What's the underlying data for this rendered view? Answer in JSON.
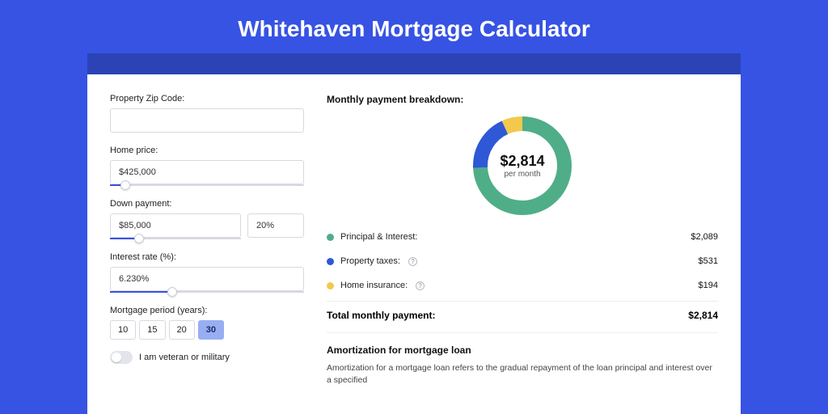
{
  "page": {
    "title": "Whitehaven Mortgage Calculator",
    "background_color": "#3753e4",
    "band_color": "#2b43b5",
    "card_color": "#ffffff"
  },
  "form": {
    "zip": {
      "label": "Property Zip Code:",
      "value": ""
    },
    "home_price": {
      "label": "Home price:",
      "value": "$425,000",
      "slider_pct": 0.08
    },
    "down_payment": {
      "label": "Down payment:",
      "amount": "$85,000",
      "pct": "20%",
      "slider_pct": 0.22
    },
    "interest_rate": {
      "label": "Interest rate (%):",
      "value": "6.230%",
      "slider_pct": 0.32
    },
    "period": {
      "label": "Mortgage period (years):",
      "options": [
        "10",
        "15",
        "20",
        "30"
      ],
      "selected_index": 3
    },
    "veteran": {
      "label": "I am veteran or military",
      "on": false
    }
  },
  "breakdown": {
    "title": "Monthly payment breakdown:",
    "center_amount": "$2,814",
    "center_sub": "per month",
    "donut": {
      "size": 122,
      "stroke_width": 18,
      "segments": [
        {
          "key": "principal_interest",
          "color": "#4fae88",
          "fraction": 0.742
        },
        {
          "key": "property_taxes",
          "color": "#2e58d6",
          "fraction": 0.189
        },
        {
          "key": "home_insurance",
          "color": "#f2c94c",
          "fraction": 0.069
        }
      ]
    },
    "rows": [
      {
        "label": "Principal & Interest:",
        "color": "#4fae88",
        "value": "$2,089",
        "info": false
      },
      {
        "label": "Property taxes:",
        "color": "#2e58d6",
        "value": "$531",
        "info": true
      },
      {
        "label": "Home insurance:",
        "color": "#f2c94c",
        "value": "$194",
        "info": true
      }
    ],
    "total_label": "Total monthly payment:",
    "total_value": "$2,814"
  },
  "amortization": {
    "title": "Amortization for mortgage loan",
    "text": "Amortization for a mortgage loan refers to the gradual repayment of the loan principal and interest over a specified"
  }
}
